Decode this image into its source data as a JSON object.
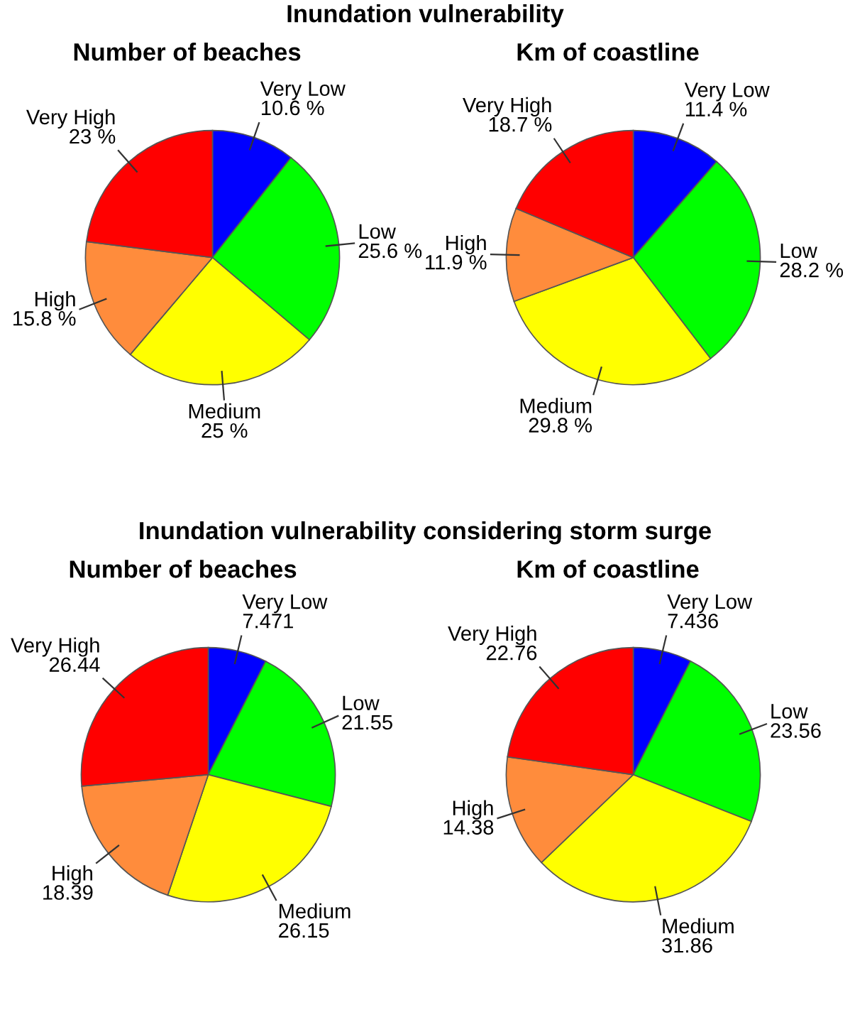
{
  "chart_data": [
    {
      "type": "pie",
      "title": "Number of beaches",
      "annotations": [
        "Inundation vulnerability"
      ],
      "categories": [
        "Very Low",
        "Low",
        "Medium",
        "High",
        "Very High"
      ],
      "values": [
        10.6,
        25.6,
        25,
        15.8,
        23
      ],
      "value_labels": [
        "10.6 %",
        "25.6 %",
        "25 %",
        "15.8 %",
        "23 %"
      ],
      "colors": [
        "#0000ff",
        "#00ff00",
        "#ffff00",
        "#ff8c3c",
        "#ff0000"
      ]
    },
    {
      "type": "pie",
      "title": "Km of coastline",
      "categories": [
        "Very Low",
        "Low",
        "Medium",
        "High",
        "Very High"
      ],
      "values": [
        11.4,
        28.2,
        29.8,
        11.9,
        18.7
      ],
      "value_labels": [
        "11.4 %",
        "28.2 %",
        "29.8 %",
        "11.9 %",
        "18.7 %"
      ],
      "colors": [
        "#0000ff",
        "#00ff00",
        "#ffff00",
        "#ff8c3c",
        "#ff0000"
      ]
    },
    {
      "type": "pie",
      "title": "Number of beaches",
      "annotations": [
        "Inundation vulnerability considering storm surge"
      ],
      "categories": [
        "Very Low",
        "Low",
        "Medium",
        "High",
        "Very High"
      ],
      "values": [
        7.471,
        21.55,
        26.15,
        18.39,
        26.44
      ],
      "value_labels": [
        "7.471",
        "21.55",
        "26.15",
        "18.39",
        "26.44"
      ],
      "colors": [
        "#0000ff",
        "#00ff00",
        "#ffff00",
        "#ff8c3c",
        "#ff0000"
      ]
    },
    {
      "type": "pie",
      "title": "Km of coastline",
      "categories": [
        "Very Low",
        "Low",
        "Medium",
        "High",
        "Very High"
      ],
      "values": [
        7.436,
        23.56,
        31.86,
        14.38,
        22.76
      ],
      "value_labels": [
        "7.436",
        "23.56",
        "31.86",
        "14.38",
        "22.76"
      ],
      "colors": [
        "#0000ff",
        "#00ff00",
        "#ffff00",
        "#ff8c3c",
        "#ff0000"
      ]
    }
  ]
}
